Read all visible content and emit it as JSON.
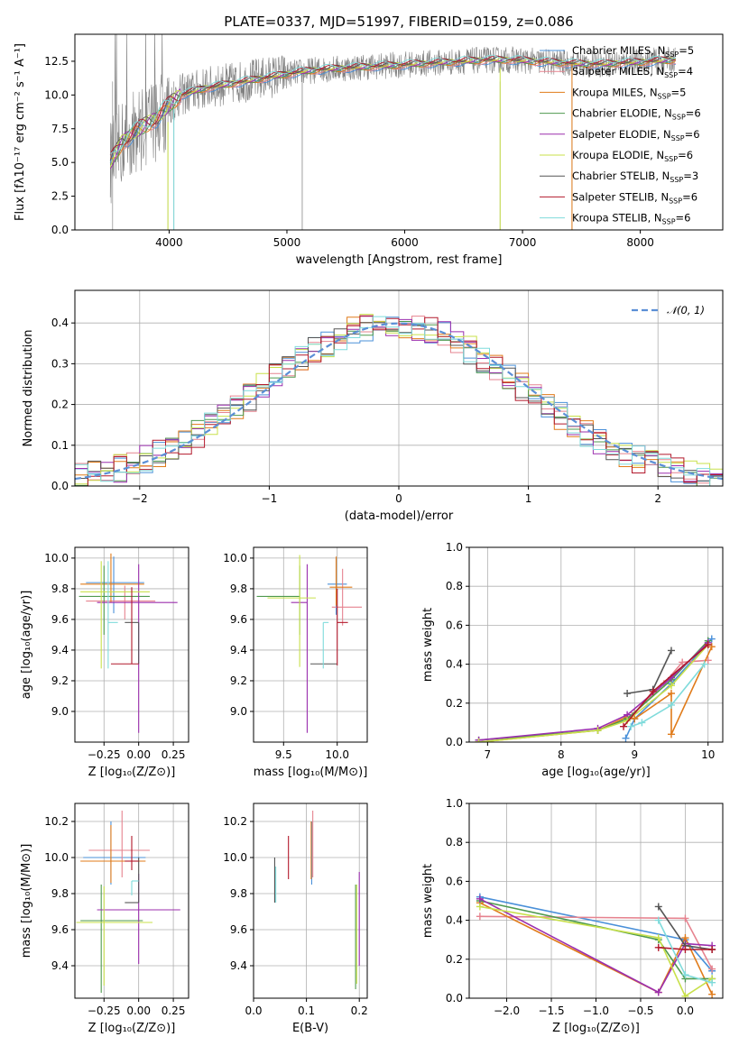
{
  "colors": {
    "Chabrier MILES": "#4a90d9",
    "Salpeter MILES": "#e6838f",
    "Kroupa MILES": "#e07b1a",
    "Chabrier ELODIE": "#4f9a4f",
    "Salpeter ELODIE": "#9b2fae",
    "Kroupa ELODIE": "#c8e04a",
    "Chabrier STELIB": "#555555",
    "Salpeter STELIB": "#b2182b",
    "Kroupa STELIB": "#7fdbdb"
  },
  "chart_data": [
    {
      "id": "spectrum",
      "type": "line",
      "title": "PLATE=0337, MJD=51997, FIBERID=0159, z=0.086",
      "xlabel": "wavelength [Angstrom, rest frame]",
      "ylabel": "Flux [fλ10⁻¹⁷ erg cm⁻² s⁻¹ A⁻¹]",
      "xlim": [
        3200,
        8700
      ],
      "ylim": [
        0,
        14.5
      ],
      "xticks": [
        4000,
        5000,
        6000,
        7000,
        8000
      ],
      "yticks": [
        0.0,
        2.5,
        5.0,
        7.5,
        10.0,
        12.5
      ],
      "grid": false,
      "legend": {
        "placement": "right",
        "entries": [
          {
            "name": "Chabrier MILES",
            "label": "Chabrier MILES, N",
            "sub": "SSP",
            "tail": "=5"
          },
          {
            "name": "Salpeter MILES",
            "label": "Salpeter MILES, N",
            "sub": "SSP",
            "tail": "=4"
          },
          {
            "name": "Kroupa MILES",
            "label": "Kroupa MILES, N",
            "sub": "SSP",
            "tail": "=5"
          },
          {
            "name": "Chabrier ELODIE",
            "label": "Chabrier ELODIE, N",
            "sub": "SSP",
            "tail": "=6"
          },
          {
            "name": "Salpeter ELODIE",
            "label": "Salpeter ELODIE, N",
            "sub": "SSP",
            "tail": "=6"
          },
          {
            "name": "Kroupa ELODIE",
            "label": "Kroupa ELODIE, N",
            "sub": "SSP",
            "tail": "=6"
          },
          {
            "name": "Chabrier STELIB",
            "label": "Chabrier STELIB, N",
            "sub": "SSP",
            "tail": "=3"
          },
          {
            "name": "Salpeter STELIB",
            "label": "Salpeter STELIB, N",
            "sub": "SSP",
            "tail": "=6"
          },
          {
            "name": "Kroupa STELIB",
            "label": "Kroupa STELIB, N",
            "sub": "SSP",
            "tail": "=6"
          }
        ]
      },
      "continuum": {
        "x": [
          3500,
          3600,
          3700,
          3800,
          3900,
          4000,
          4100,
          4300,
          4500,
          4700,
          4900,
          5100,
          5300,
          5500,
          5700,
          5900,
          6100,
          6300,
          6500,
          6700,
          6900,
          7100,
          7300,
          7500,
          7700,
          7900,
          8100,
          8300
        ],
        "y": [
          5.0,
          6.5,
          7.2,
          7.8,
          8.3,
          9.3,
          10.0,
          10.5,
          10.8,
          11.1,
          11.4,
          11.7,
          11.9,
          12.0,
          12.1,
          12.2,
          12.3,
          12.4,
          12.5,
          12.6,
          12.6,
          12.5,
          12.4,
          12.3,
          12.3,
          12.4,
          12.5,
          12.6
        ]
      },
      "dropouts": [
        3520,
        3990,
        4040,
        6810,
        7420
      ],
      "data_line_color": "#808080"
    },
    {
      "id": "residuals",
      "type": "histogram",
      "xlabel": "(data-model)/error",
      "ylabel": "Normed distribution",
      "xlim": [
        -2.5,
        2.5
      ],
      "ylim": [
        0,
        0.48
      ],
      "xticks": [
        -2,
        -1,
        0,
        1,
        2
      ],
      "yticks": [
        0.0,
        0.1,
        0.2,
        0.3,
        0.4
      ],
      "grid": true,
      "legend": {
        "placement": "upper-right",
        "entries": [
          {
            "name": "𝒩(0, 1)",
            "style": "dashed"
          }
        ]
      },
      "bin_width": 0.1,
      "gaussian_color": "#5b8fd6"
    },
    {
      "id": "age-Z",
      "type": "errorbar",
      "xlabel": "Z [log₁₀(Z/Z⊙)]",
      "ylabel": "age  [log₁₀(age/yr)]",
      "xlim": [
        -0.46,
        0.36
      ],
      "ylim": [
        8.8,
        10.07
      ],
      "xticks": [
        -0.25,
        0.0,
        0.25
      ],
      "yticks": [
        9.0,
        9.2,
        9.4,
        9.6,
        9.8,
        10.0
      ],
      "grid": true,
      "points": [
        {
          "model": "Chabrier MILES",
          "x": -0.18,
          "xerr": [
            0.2,
            0.22
          ],
          "y": 9.84,
          "yerr": [
            0.2,
            0.17
          ]
        },
        {
          "model": "Salpeter MILES",
          "x": -0.1,
          "xerr": [
            0.28,
            0.22
          ],
          "y": 9.72,
          "yerr": [
            0.12,
            0.1
          ]
        },
        {
          "model": "Kroupa MILES",
          "x": -0.2,
          "xerr": [
            0.22,
            0.24
          ],
          "y": 9.83,
          "yerr": [
            0.12,
            0.2
          ]
        },
        {
          "model": "Chabrier ELODIE",
          "x": -0.25,
          "xerr": [
            0.18,
            0.33
          ],
          "y": 9.75,
          "yerr": [
            0.25,
            0.2
          ]
        },
        {
          "model": "Salpeter ELODIE",
          "x": 0.0,
          "xerr": [
            0.3,
            0.28
          ],
          "y": 9.71,
          "yerr": [
            0.85,
            0.25
          ]
        },
        {
          "model": "Kroupa ELODIE",
          "x": -0.27,
          "xerr": [
            0.15,
            0.35
          ],
          "y": 9.78,
          "yerr": [
            0.5,
            0.2
          ]
        },
        {
          "model": "Chabrier STELIB",
          "x": 0.0,
          "xerr": [
            0.1,
            0.0
          ],
          "y": 9.58,
          "yerr": [
            0.27,
            0.0
          ]
        },
        {
          "model": "Salpeter STELIB",
          "x": -0.05,
          "xerr": [
            0.15,
            0.05
          ],
          "y": 9.31,
          "yerr": [
            0.0,
            0.5
          ]
        },
        {
          "model": "Kroupa STELIB",
          "x": -0.22,
          "xerr": [
            0.0,
            0.07
          ],
          "y": 9.58,
          "yerr": [
            0.3,
            0.4
          ]
        }
      ]
    },
    {
      "id": "age-mass",
      "type": "errorbar",
      "xlabel": "mass [log₁₀(M/M⊙)]",
      "ylabel": "",
      "xlim": [
        9.22,
        10.28
      ],
      "ylim": [
        8.8,
        10.07
      ],
      "xticks": [
        9.5,
        10.0
      ],
      "yticks": [
        9.0,
        9.2,
        9.4,
        9.6,
        9.8,
        10.0
      ],
      "grid": true,
      "points": [
        {
          "model": "Chabrier MILES",
          "x": 9.99,
          "xerr": [
            0.08,
            0.1
          ],
          "y": 9.83,
          "yerr": [
            0.2,
            0.17
          ]
        },
        {
          "model": "Salpeter MILES",
          "x": 10.05,
          "xerr": [
            0.1,
            0.18
          ],
          "y": 9.68,
          "yerr": [
            0.12,
            0.25
          ]
        },
        {
          "model": "Kroupa MILES",
          "x": 9.99,
          "xerr": [
            0.06,
            0.15
          ],
          "y": 9.81,
          "yerr": [
            0.12,
            0.2
          ]
        },
        {
          "model": "Chabrier ELODIE",
          "x": 9.65,
          "xerr": [
            0.4,
            0.0
          ],
          "y": 9.75,
          "yerr": [
            0.25,
            0.2
          ]
        },
        {
          "model": "Salpeter ELODIE",
          "x": 9.72,
          "xerr": [
            0.15,
            0.0
          ],
          "y": 9.71,
          "yerr": [
            0.85,
            0.25
          ]
        },
        {
          "model": "Kroupa ELODIE",
          "x": 9.65,
          "xerr": [
            0.3,
            0.15
          ],
          "y": 9.74,
          "yerr": [
            0.45,
            0.28
          ]
        },
        {
          "model": "Chabrier STELIB",
          "x": 9.75,
          "xerr": [
            0.0,
            0.25
          ],
          "y": 9.31,
          "yerr": [
            0.0,
            0.0
          ]
        },
        {
          "model": "Salpeter STELIB",
          "x": 10.0,
          "xerr": [
            0.0,
            0.1
          ],
          "y": 9.58,
          "yerr": [
            0.28,
            0.22
          ]
        },
        {
          "model": "Kroupa STELIB",
          "x": 9.87,
          "xerr": [
            0.0,
            0.05
          ],
          "y": 9.58,
          "yerr": [
            0.3,
            0.0
          ]
        }
      ]
    },
    {
      "id": "weight-age",
      "type": "line",
      "xlabel": "age  [log₁₀(age/yr)]",
      "ylabel": "mass weight",
      "xlim": [
        6.75,
        10.2
      ],
      "ylim": [
        0,
        1.0
      ],
      "xticks": [
        7,
        8,
        9,
        10
      ],
      "yticks": [
        0.0,
        0.2,
        0.4,
        0.6,
        0.8,
        1.0
      ],
      "grid": true,
      "series": [
        {
          "model": "Chabrier MILES",
          "x": [
            8.88,
            9.0,
            9.5,
            10.05
          ],
          "y": [
            0.02,
            0.12,
            0.3,
            0.53
          ]
        },
        {
          "model": "Salpeter MILES",
          "x": [
            9.0,
            9.4,
            9.65,
            10.0
          ],
          "y": [
            0.15,
            0.3,
            0.41,
            0.42
          ]
        },
        {
          "model": "Kroupa MILES",
          "x": [
            6.88,
            8.5,
            8.9,
            9.0,
            9.5,
            9.5,
            10.05
          ],
          "y": [
            0.0,
            0.06,
            0.13,
            0.12,
            0.25,
            0.04,
            0.49
          ]
        },
        {
          "model": "Chabrier ELODIE",
          "x": [
            6.88,
            8.5,
            8.9,
            9.5,
            10.0
          ],
          "y": [
            0.01,
            0.06,
            0.12,
            0.32,
            0.52
          ]
        },
        {
          "model": "Salpeter ELODIE",
          "x": [
            6.88,
            8.5,
            8.9,
            9.5,
            10.0
          ],
          "y": [
            0.01,
            0.07,
            0.14,
            0.33,
            0.51
          ]
        },
        {
          "model": "Kroupa ELODIE",
          "x": [
            6.88,
            8.5,
            8.9,
            9.5,
            10.0
          ],
          "y": [
            0.0,
            0.06,
            0.11,
            0.29,
            0.5
          ]
        },
        {
          "model": "Chabrier STELIB",
          "x": [
            8.9,
            9.25,
            9.5
          ],
          "y": [
            0.25,
            0.27,
            0.47
          ]
        },
        {
          "model": "Salpeter STELIB",
          "x": [
            8.85,
            9.25,
            10.0
          ],
          "y": [
            0.08,
            0.26,
            0.5
          ]
        },
        {
          "model": "Kroupa STELIB",
          "x": [
            8.95,
            9.1,
            9.5,
            9.95
          ],
          "y": [
            0.08,
            0.1,
            0.19,
            0.4
          ]
        }
      ]
    },
    {
      "id": "mass-Z",
      "type": "errorbar",
      "xlabel": "Z [log₁₀(Z/Z⊙)]",
      "ylabel": "mass [log₁₀(M/M⊙)]",
      "xlim": [
        -0.46,
        0.36
      ],
      "ylim": [
        9.22,
        10.3
      ],
      "xticks": [
        -0.25,
        0.0,
        0.25
      ],
      "yticks": [
        9.4,
        9.6,
        9.8,
        10.0,
        10.2
      ],
      "grid": true,
      "points": [
        {
          "model": "Chabrier MILES",
          "x": -0.2,
          "xerr": [
            0.2,
            0.25
          ],
          "y": 10.0,
          "yerr": [
            0.15,
            0.2
          ]
        },
        {
          "model": "Salpeter MILES",
          "x": -0.12,
          "xerr": [
            0.24,
            0.2
          ],
          "y": 10.04,
          "yerr": [
            0.15,
            0.22
          ]
        },
        {
          "model": "Kroupa MILES",
          "x": -0.2,
          "xerr": [
            0.22,
            0.25
          ],
          "y": 9.98,
          "yerr": [
            0.12,
            0.2
          ]
        },
        {
          "model": "Chabrier ELODIE",
          "x": -0.27,
          "xerr": [
            0.15,
            0.3
          ],
          "y": 9.65,
          "yerr": [
            0.4,
            0.2
          ]
        },
        {
          "model": "Salpeter ELODIE",
          "x": 0.0,
          "xerr": [
            0.3,
            0.3
          ],
          "y": 9.71,
          "yerr": [
            0.3,
            0.2
          ]
        },
        {
          "model": "Kroupa ELODIE",
          "x": -0.25,
          "xerr": [
            0.2,
            0.35
          ],
          "y": 9.64,
          "yerr": [
            0.35,
            0.2
          ]
        },
        {
          "model": "Chabrier STELIB",
          "x": 0.0,
          "xerr": [
            0.1,
            0.0
          ],
          "y": 9.75,
          "yerr": [
            0.0,
            0.25
          ]
        },
        {
          "model": "Salpeter STELIB",
          "x": -0.05,
          "xerr": [
            0.05,
            0.05
          ],
          "y": 9.98,
          "yerr": [
            0.05,
            0.14
          ]
        },
        {
          "model": "Kroupa STELIB",
          "x": -0.05,
          "xerr": [
            0.0,
            0.05
          ],
          "y": 9.87,
          "yerr": [
            0.08,
            0.0
          ]
        }
      ]
    },
    {
      "id": "mass-EBV",
      "type": "errorbar",
      "xlabel": "E(B-V)",
      "ylabel": "",
      "xlim": [
        0.0,
        0.215
      ],
      "ylim": [
        9.22,
        10.3
      ],
      "xticks": [
        0.0,
        0.1,
        0.2
      ],
      "xticklabels": [
        "0.0",
        "0.1",
        "0.2"
      ],
      "yticks": [
        9.4,
        9.6,
        9.8,
        10.0,
        10.2
      ],
      "grid": true,
      "points": [
        {
          "model": "Chabrier MILES",
          "x": 0.11,
          "xerr": [
            0,
            0
          ],
          "y": 10.0,
          "yerr": [
            0.15,
            0.2
          ]
        },
        {
          "model": "Salpeter MILES",
          "x": 0.112,
          "xerr": [
            0,
            0
          ],
          "y": 10.04,
          "yerr": [
            0.15,
            0.22
          ]
        },
        {
          "model": "Kroupa MILES",
          "x": 0.109,
          "xerr": [
            0,
            0
          ],
          "y": 10.0,
          "yerr": [
            0.12,
            0.2
          ]
        },
        {
          "model": "Chabrier ELODIE",
          "x": 0.193,
          "xerr": [
            0,
            0
          ],
          "y": 9.6,
          "yerr": [
            0.33,
            0.25
          ]
        },
        {
          "model": "Salpeter ELODIE",
          "x": 0.2,
          "xerr": [
            0,
            0
          ],
          "y": 9.65,
          "yerr": [
            0.25,
            0.27
          ]
        },
        {
          "model": "Kroupa ELODIE",
          "x": 0.195,
          "xerr": [
            0,
            0
          ],
          "y": 9.55,
          "yerr": [
            0.25,
            0.3
          ]
        },
        {
          "model": "Chabrier STELIB",
          "x": 0.04,
          "xerr": [
            0,
            0
          ],
          "y": 9.87,
          "yerr": [
            0.12,
            0.13
          ]
        },
        {
          "model": "Salpeter STELIB",
          "x": 0.066,
          "xerr": [
            0,
            0
          ],
          "y": 9.99,
          "yerr": [
            0.11,
            0.13
          ]
        },
        {
          "model": "Kroupa STELIB",
          "x": 0.042,
          "xerr": [
            0,
            0
          ],
          "y": 9.85,
          "yerr": [
            0.1,
            0.1
          ]
        }
      ]
    },
    {
      "id": "weight-Z",
      "type": "line",
      "xlabel": "Z [log₁₀(Z/Z⊙)]",
      "ylabel": "mass weight",
      "xlim": [
        -2.42,
        0.42
      ],
      "ylim": [
        0,
        1.0
      ],
      "xticks": [
        -2.0,
        -1.5,
        -1.0,
        -0.5,
        0.0
      ],
      "yticks": [
        0.0,
        0.2,
        0.4,
        0.6,
        0.8,
        1.0
      ],
      "grid": true,
      "series": [
        {
          "model": "Chabrier MILES",
          "x": [
            -2.3,
            0.0,
            0.3
          ],
          "y": [
            0.52,
            0.3,
            0.14
          ]
        },
        {
          "model": "Salpeter MILES",
          "x": [
            -2.3,
            0.0,
            0.3
          ],
          "y": [
            0.42,
            0.41,
            0.15
          ]
        },
        {
          "model": "Kroupa MILES",
          "x": [
            -2.3,
            -0.3,
            0.0,
            0.3
          ],
          "y": [
            0.49,
            0.03,
            0.31,
            0.02
          ]
        },
        {
          "model": "Chabrier ELODIE",
          "x": [
            -2.3,
            -0.3,
            0.0,
            0.3
          ],
          "y": [
            0.5,
            0.3,
            0.1,
            0.1
          ]
        },
        {
          "model": "Salpeter ELODIE",
          "x": [
            -2.3,
            -0.3,
            0.0,
            0.3
          ],
          "y": [
            0.51,
            0.03,
            0.28,
            0.27
          ]
        },
        {
          "model": "Kroupa ELODIE",
          "x": [
            -2.3,
            -0.3,
            0.0,
            0.3
          ],
          "y": [
            0.47,
            0.31,
            0.01,
            0.1
          ]
        },
        {
          "model": "Chabrier STELIB",
          "x": [
            -0.3,
            0.0,
            0.3
          ],
          "y": [
            0.47,
            0.27,
            0.25
          ]
        },
        {
          "model": "Salpeter STELIB",
          "x": [
            -0.3,
            0.0,
            0.3
          ],
          "y": [
            0.26,
            0.25,
            0.25
          ]
        },
        {
          "model": "Kroupa STELIB",
          "x": [
            -0.3,
            0.0,
            0.3
          ],
          "y": [
            0.4,
            0.12,
            0.08
          ]
        }
      ]
    }
  ]
}
